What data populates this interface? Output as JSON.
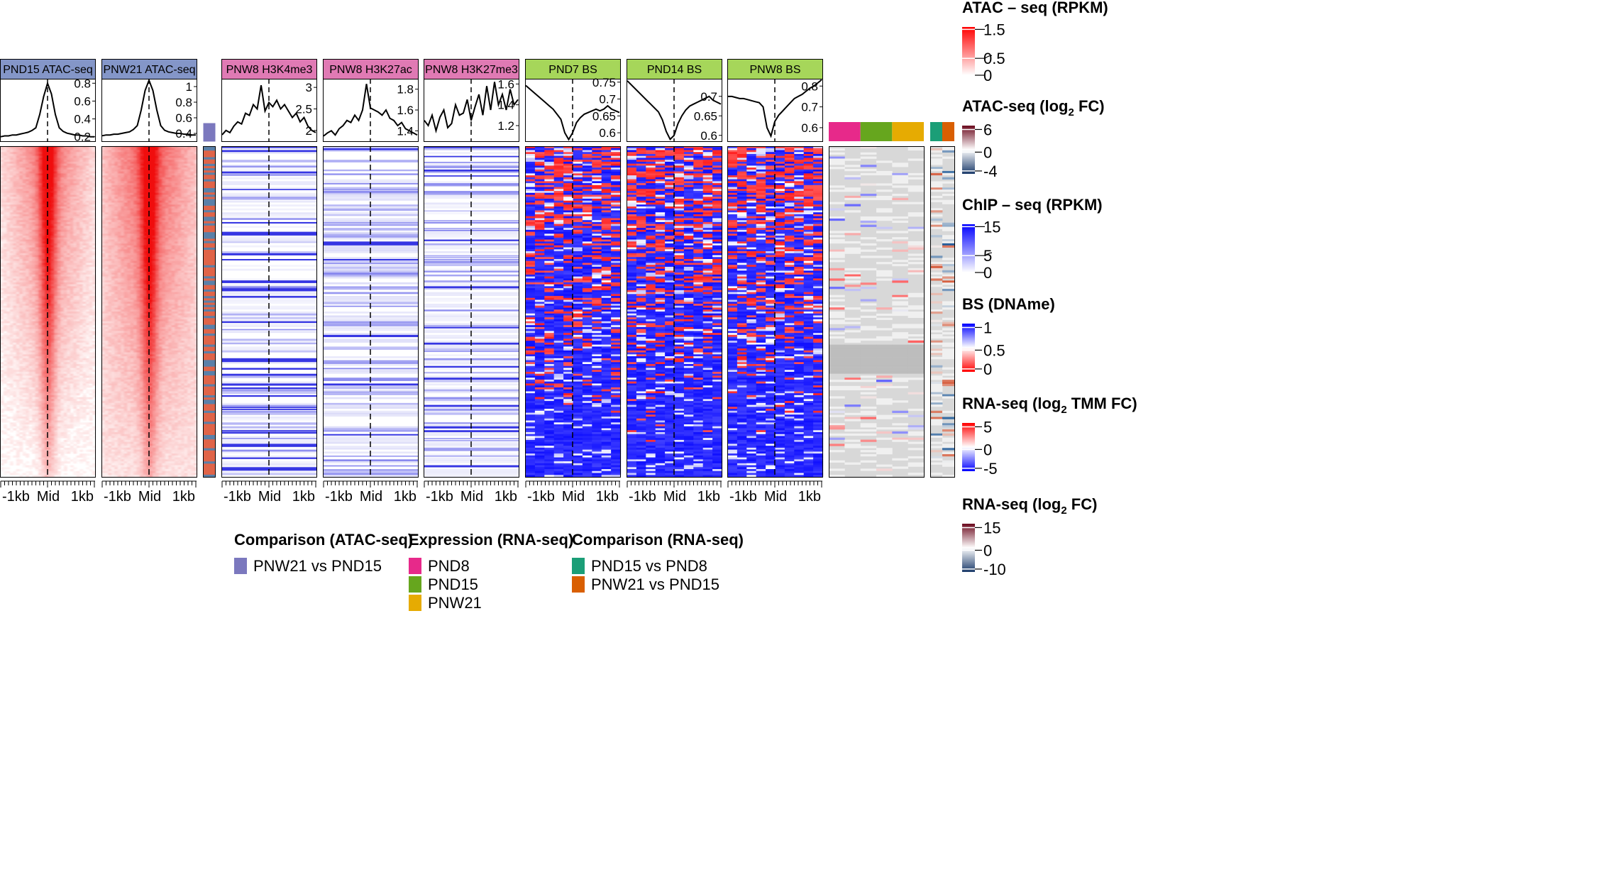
{
  "chart_data": {
    "type": "heatmap",
    "x_tick_labels": [
      "-1kb",
      "Mid",
      "1kb"
    ],
    "panels": [
      {
        "name": "PND15 ATAC-seq",
        "header_color": "#8496C8",
        "signal": "atac",
        "profile_ticks": [
          "0.8",
          "0.6",
          "0.4",
          "0.2"
        ],
        "profile_range": [
          0.15,
          0.85
        ],
        "profile": [
          0.2,
          0.21,
          0.21,
          0.22,
          0.22,
          0.23,
          0.24,
          0.25,
          0.27,
          0.3,
          0.45,
          0.65,
          0.8,
          0.68,
          0.45,
          0.3,
          0.26,
          0.24,
          0.23,
          0.22,
          0.22,
          0.21,
          0.21,
          0.2,
          0.2
        ]
      },
      {
        "name": "PNW21 ATAC-seq",
        "header_color": "#8496C8",
        "signal": "atac",
        "profile_ticks": [
          "1",
          "0.8",
          "0.6",
          "0.4"
        ],
        "profile_range": [
          0.3,
          1.1
        ],
        "profile": [
          0.37,
          0.38,
          0.38,
          0.39,
          0.39,
          0.4,
          0.41,
          0.42,
          0.45,
          0.5,
          0.7,
          0.95,
          1.08,
          0.95,
          0.7,
          0.5,
          0.44,
          0.42,
          0.41,
          0.4,
          0.4,
          0.39,
          0.39,
          0.38,
          0.38
        ]
      },
      {
        "name": "PNW8 H3K4me3",
        "header_color": "#E07AB4",
        "signal": "chip",
        "profile_ticks": [
          "3",
          "2.5",
          "2"
        ],
        "profile_range": [
          1.75,
          3.2
        ],
        "profile": [
          1.9,
          2.0,
          1.95,
          2.1,
          2.2,
          2.15,
          2.4,
          2.35,
          2.6,
          2.5,
          3.05,
          2.45,
          2.65,
          2.55,
          2.7,
          2.5,
          2.6,
          2.45,
          2.3,
          2.4,
          2.2,
          2.3,
          2.1,
          2.0,
          1.95
        ]
      },
      {
        "name": "PNW8 H3K27ac",
        "header_color": "#E07AB4",
        "signal": "chip",
        "profile_ticks": [
          "1.8",
          "1.6",
          "1.4"
        ],
        "profile_range": [
          1.3,
          1.9
        ],
        "profile": [
          1.35,
          1.38,
          1.4,
          1.36,
          1.42,
          1.45,
          1.5,
          1.48,
          1.55,
          1.5,
          1.6,
          1.85,
          1.62,
          1.6,
          1.58,
          1.55,
          1.6,
          1.52,
          1.5,
          1.45,
          1.48,
          1.42,
          1.4,
          1.38,
          1.36
        ]
      },
      {
        "name": "PNW8 H3K27me3",
        "header_color": "#E07AB4",
        "signal": "chip",
        "profile_ticks": [
          "1.6",
          "1.4",
          "1.2"
        ],
        "profile_range": [
          1.05,
          1.65
        ],
        "profile": [
          1.25,
          1.2,
          1.3,
          1.15,
          1.28,
          1.35,
          1.18,
          1.22,
          1.4,
          1.3,
          1.32,
          1.45,
          1.25,
          1.38,
          1.5,
          1.3,
          1.58,
          1.35,
          1.62,
          1.4,
          1.5,
          1.35,
          1.55,
          1.4,
          1.45
        ]
      },
      {
        "name": "PND7 BS",
        "header_color": "#A6D65A",
        "signal": "bs",
        "profile_ticks": [
          "0.75",
          "0.7",
          "0.65",
          "0.6"
        ],
        "profile_range": [
          0.575,
          0.76
        ],
        "profile": [
          0.74,
          0.73,
          0.72,
          0.71,
          0.7,
          0.69,
          0.68,
          0.67,
          0.655,
          0.64,
          0.6,
          0.58,
          0.6,
          0.63,
          0.645,
          0.655,
          0.66,
          0.665,
          0.67,
          0.665,
          0.67,
          0.68,
          0.67,
          0.665,
          0.66
        ]
      },
      {
        "name": "PND14 BS",
        "header_color": "#A6D65A",
        "signal": "bs",
        "profile_ticks": [
          "0.7",
          "0.65",
          "0.6"
        ],
        "profile_range": [
          0.585,
          0.745
        ],
        "profile": [
          0.74,
          0.73,
          0.72,
          0.71,
          0.7,
          0.69,
          0.68,
          0.67,
          0.66,
          0.64,
          0.61,
          0.59,
          0.6,
          0.63,
          0.65,
          0.665,
          0.675,
          0.68,
          0.685,
          0.69,
          0.695,
          0.7,
          0.69,
          0.685,
          0.68
        ]
      },
      {
        "name": "PNW8 BS",
        "header_color": "#A6D65A",
        "signal": "bs",
        "profile_ticks": [
          "0.8",
          "0.7",
          "0.6"
        ],
        "profile_range": [
          0.535,
          0.835
        ],
        "profile": [
          0.75,
          0.75,
          0.745,
          0.74,
          0.74,
          0.735,
          0.73,
          0.725,
          0.72,
          0.7,
          0.6,
          0.56,
          0.63,
          0.66,
          0.68,
          0.7,
          0.72,
          0.74,
          0.75,
          0.76,
          0.775,
          0.79,
          0.8,
          0.815,
          0.83
        ]
      }
    ],
    "legends_right": [
      {
        "title": "ATAC – seq (RPKM)",
        "ticks": [
          "1.5",
          "0.5",
          "0"
        ],
        "palette": [
          "#FF0000",
          "#FFFFFF"
        ]
      },
      {
        "title": "ATAC-seq (log",
        "title_sub": "2",
        "title_end": " FC)",
        "ticks": [
          "6",
          "0",
          "-4"
        ],
        "palette": [
          "#6B0A1E",
          "#FFFFFF",
          "#1A3A6A"
        ]
      },
      {
        "title": "ChIP – seq (RPKM)",
        "ticks": [
          "15",
          "5",
          "0"
        ],
        "palette": [
          "#0000FF",
          "#FFFFFF"
        ]
      },
      {
        "title": "BS (DNAme)",
        "ticks": [
          "1",
          "0.5",
          "0"
        ],
        "palette": [
          "#0000FF",
          "#FFFFFF",
          "#FF0000"
        ]
      },
      {
        "title": "RNA-seq (log",
        "title_sub": "2",
        "title_end": " TMM FC)",
        "ticks": [
          "5",
          "0",
          "-5"
        ],
        "palette": [
          "#FF0000",
          "#FFFFFF",
          "#0000FF"
        ]
      },
      {
        "title": "RNA-seq (log",
        "title_sub": "2",
        "title_end": " FC)",
        "ticks": [
          "15",
          "0",
          "-10"
        ],
        "palette": [
          "#6B0A1E",
          "#FFFFFF",
          "#1A3A6A"
        ]
      }
    ],
    "legends_bottom": [
      {
        "title": "Comparison (ATAC-seq)",
        "items": [
          {
            "label": "PNW21 vs PND15",
            "color": "#7B78BE"
          }
        ]
      },
      {
        "title": "Expression (RNA-seq)",
        "items": [
          {
            "label": "PND8",
            "color": "#E7298A"
          },
          {
            "label": "PND15",
            "color": "#66A61E"
          },
          {
            "label": "PNW21",
            "color": "#E6AB02"
          }
        ]
      },
      {
        "title": "Comparison (RNA-seq)",
        "items": [
          {
            "label": "PND15 vs PND8",
            "color": "#1B9E77"
          },
          {
            "label": "PNW21 vs PND15",
            "color": "#D95F02"
          }
        ]
      }
    ],
    "annotation_tracks": {
      "atac_comparison": {
        "color": "#7B78BE"
      },
      "rna_expression": [
        "#E7298A",
        "#66A61E",
        "#E6AB02"
      ],
      "rna_comparison": [
        "#1B9E77",
        "#D95F02"
      ]
    }
  }
}
